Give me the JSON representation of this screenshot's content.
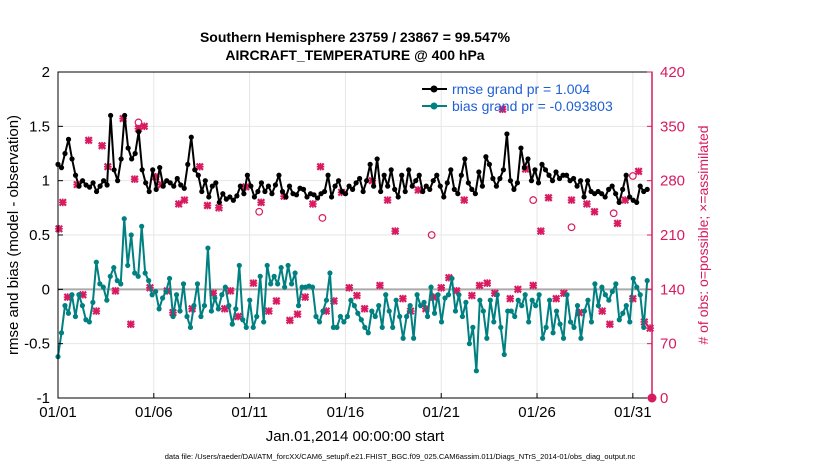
{
  "chart_data": {
    "type": "line",
    "title_line1": "Southern Hemisphere 23759 / 23867 = 99.547%",
    "title_line2": "AIRCRAFT_TEMPERATURE @ 400 hPa",
    "xlabel": "Jan.01,2014 00:00:00 start",
    "ylabel_left": "rmse and bias (model - observation)",
    "ylabel_right": "# of obs: o=possible; ×=assimilated",
    "footer": "data file: /Users/raeder/DAI/ATM_forcXX/CAM6_setup/f.e21.FHIST_BGC.f09_025.CAM6assim.011/Diags_NTrS_2014-01/obs_diag_output.nc",
    "xlim": [
      1,
      32
    ],
    "ylim_left": [
      -1,
      2
    ],
    "ylim_right": [
      0,
      420
    ],
    "x_ticks": [
      1,
      6,
      11,
      16,
      21,
      26,
      31
    ],
    "x_tick_labels": [
      "01/01",
      "01/06",
      "01/11",
      "01/16",
      "01/21",
      "01/26",
      "01/31"
    ],
    "y_left_ticks": [
      -1,
      -0.5,
      0,
      0.5,
      1,
      1.5,
      2
    ],
    "y_left_tick_labels": [
      "-1",
      "-0.5",
      "0",
      "0.5",
      "1",
      "1.5",
      "2"
    ],
    "y_right_ticks": [
      0,
      70,
      140,
      210,
      280,
      350,
      420
    ],
    "y_right_tick_labels": [
      "0",
      "70",
      "140",
      "210",
      "280",
      "350",
      "420"
    ],
    "legend": [
      {
        "label": "rmse grand pr = 1.004",
        "color": "#000000"
      },
      {
        "label": "bias grand pr = -0.093803",
        "color": "#008080"
      }
    ],
    "colors": {
      "rmse": "#000000",
      "bias": "#008080",
      "obs": "#d81b60",
      "zero_line": "#aaaaaa",
      "legend_text": "#1f5fd6",
      "grid": "#e6e6e6"
    },
    "series": [
      {
        "name": "rmse",
        "values": [
          1.15,
          1.12,
          1.25,
          1.38,
          1.2,
          1.05,
          0.95,
          1.0,
          0.96,
          0.94,
          0.98,
          0.9,
          0.95,
          1.0,
          0.96,
          1.6,
          1.1,
          1.0,
          1.2,
          1.6,
          1.3,
          1.2,
          1.25,
          1.45,
          1.1,
          0.98,
          0.9,
          1.1,
          0.92,
          1.12,
          0.95,
          1.0,
          0.98,
          0.95,
          1.02,
          0.96,
          0.93,
          1.15,
          1.4,
          1.1,
          1.05,
          0.9,
          1.0,
          0.85,
          0.95,
          0.98,
          0.8,
          0.88,
          0.83,
          0.85,
          0.82,
          0.86,
          0.95,
          0.88,
          1.05,
          0.95,
          0.85,
          0.9,
          0.98,
          0.9,
          0.95,
          0.88,
          0.96,
          1.05,
          0.9,
          0.85,
          0.95,
          0.88,
          0.87,
          0.93,
          0.92,
          0.85,
          0.88,
          0.87,
          0.84,
          0.88,
          0.9,
          1.05,
          0.85,
          0.95,
          1.0,
          0.9,
          0.88,
          0.95,
          0.92,
          0.98,
          1.02,
          0.9,
          1.0,
          1.15,
          0.95,
          1.2,
          0.9,
          1.05,
          0.95,
          1.1,
          0.92,
          0.85,
          1.05,
          0.9,
          1.1,
          0.95,
          1.0,
          1.05,
          0.9,
          0.95,
          0.92,
          1.0,
          1.05,
          0.95,
          0.85,
          0.98,
          1.1,
          0.92,
          0.88,
          1.05,
          1.2,
          0.98,
          0.92,
          0.88,
          1.08,
          0.95,
          1.22,
          1.15,
          1.02,
          0.95,
          1.02,
          1.1,
          1.43,
          1.0,
          0.92,
          0.98,
          1.3,
          1.12,
          1.2,
          1.0,
          1.1,
          0.98,
          1.15,
          1.1,
          1.05,
          1.0,
          1.08,
          1.02,
          1.05,
          1.05,
          1.0,
          1.02,
          0.95,
          1.0,
          0.85,
          1.0,
          0.9,
          0.88,
          0.9,
          0.88,
          0.85,
          0.92,
          0.95,
          0.88,
          0.8,
          0.92,
          1.05,
          0.85,
          0.82,
          0.8,
          0.95,
          0.9,
          0.92
        ]
      },
      {
        "name": "bias",
        "values": [
          -0.62,
          -0.4,
          -0.15,
          -0.22,
          -0.05,
          -0.25,
          -0.05,
          -0.15,
          -0.28,
          -0.3,
          -0.12,
          0.25,
          0.05,
          0.02,
          -0.1,
          0.12,
          0.2,
          0.08,
          0.05,
          0.65,
          0.22,
          0.5,
          0.15,
          0.12,
          0.58,
          0.15,
          0.08,
          -0.05,
          -0.02,
          -0.18,
          -0.08,
          -0.02,
          0.1,
          -0.25,
          -0.05,
          -0.2,
          0.05,
          -0.25,
          -0.35,
          -0.15,
          0.05,
          -0.25,
          -0.15,
          0.38,
          -0.2,
          -0.08,
          -0.18,
          -0.05,
          0.02,
          -0.15,
          -0.32,
          -0.18,
          0.22,
          -0.28,
          -0.35,
          -0.1,
          -0.35,
          -0.25,
          0.12,
          -0.3,
          0.22,
          0.05,
          0.12,
          0.05,
          0.2,
          0.02,
          0.22,
          0.05,
          0.15,
          -0.15,
          0.02,
          0.02,
          0.03,
          0.02,
          -0.25,
          -0.3,
          -0.2,
          -0.1,
          0.15,
          -0.35,
          -0.35,
          -0.25,
          -0.3,
          -0.25,
          -0.1,
          -0.15,
          -0.22,
          -0.28,
          -0.35,
          -0.4,
          -0.2,
          -0.25,
          -0.15,
          -0.35,
          -0.05,
          -0.2,
          -0.35,
          -0.1,
          -0.25,
          -0.45,
          -0.25,
          -0.15,
          -0.45,
          -0.05,
          -0.15,
          -0.12,
          -0.25,
          0.02,
          -0.22,
          -0.05,
          -0.3,
          -0.08,
          -0.05,
          0.1,
          -0.2,
          -0.05,
          -0.25,
          -0.12,
          -0.5,
          -0.35,
          -0.75,
          -0.1,
          -0.2,
          -0.45,
          -0.1,
          -0.3,
          -0.05,
          -0.35,
          -0.6,
          -0.2,
          -0.2,
          -0.25,
          -0.1,
          -0.15,
          -0.05,
          -0.3,
          -0.1,
          -0.15,
          -0.05,
          -0.45,
          -0.35,
          -0.1,
          -0.4,
          -0.2,
          -0.32,
          -0.45,
          -0.05,
          -0.3,
          -0.35,
          -0.15,
          -0.45,
          -0.2,
          -0.1,
          -0.3,
          0.05,
          -0.15,
          0.02,
          -0.05,
          -0.1,
          -0.02,
          0.05,
          -0.28,
          -0.22,
          -0.15,
          -0.3,
          0.1,
          0.02,
          -0.05,
          -0.35,
          0.08
        ]
      },
      {
        "name": "obs_assimilated",
        "x": [
          1.05,
          1.25,
          1.5,
          2.0,
          2.3,
          2.6,
          3.0,
          3.3,
          3.6,
          4.0,
          4.4,
          4.8,
          5.0,
          5.2,
          5.5,
          5.8,
          6.1,
          6.4,
          6.7,
          7.0,
          7.3,
          7.6,
          8.0,
          8.4,
          8.8,
          9.1,
          9.4,
          9.7,
          10.0,
          10.4,
          10.8,
          11.2,
          11.6,
          12.0,
          12.4,
          12.8,
          13.1,
          13.5,
          13.9,
          14.3,
          14.7,
          15.0,
          15.4,
          15.8,
          16.2,
          16.6,
          17.0,
          17.4,
          17.8,
          18.2,
          18.6,
          19.0,
          19.4,
          19.8,
          20.2,
          20.6,
          21.0,
          21.4,
          21.8,
          22.2,
          22.6,
          23.0,
          23.4,
          23.8,
          24.2,
          24.6,
          25.0,
          25.4,
          25.8,
          26.2,
          26.6,
          27.0,
          27.4,
          27.8,
          28.2,
          28.6,
          29.0,
          29.4,
          29.8,
          30.2,
          30.6,
          31.0,
          31.3,
          31.6,
          31.9
        ],
        "values": [
          218,
          252,
          130,
          275,
          133,
          332,
          112,
          325,
          298,
          138,
          360,
          95,
          282,
          347,
          350,
          142,
          285,
          275,
          138,
          110,
          250,
          255,
          115,
          298,
          248,
          135,
          245,
          115,
          138,
          105,
          272,
          148,
          252,
          112,
          125,
          260,
          100,
          108,
          130,
          250,
          298,
          112,
          125,
          265,
          142,
          132,
          115,
          280,
          145,
          255,
          215,
          128,
          112,
          268,
          115,
          130,
          142,
          155,
          138,
          255,
          132,
          145,
          148,
          135,
          372,
          128,
          140,
          295,
          145,
          215,
          258,
          128,
          135,
          255,
          110,
          250,
          240,
          112,
          95,
          225,
          255,
          128,
          292,
          98,
          90
        ]
      },
      {
        "name": "obs_possible",
        "x": [
          5.2,
          11.5,
          14.8,
          20.5,
          25.8,
          27.8,
          30.0,
          31.0
        ],
        "values": [
          355,
          240,
          232,
          210,
          255,
          220,
          238,
          286
        ]
      }
    ]
  }
}
